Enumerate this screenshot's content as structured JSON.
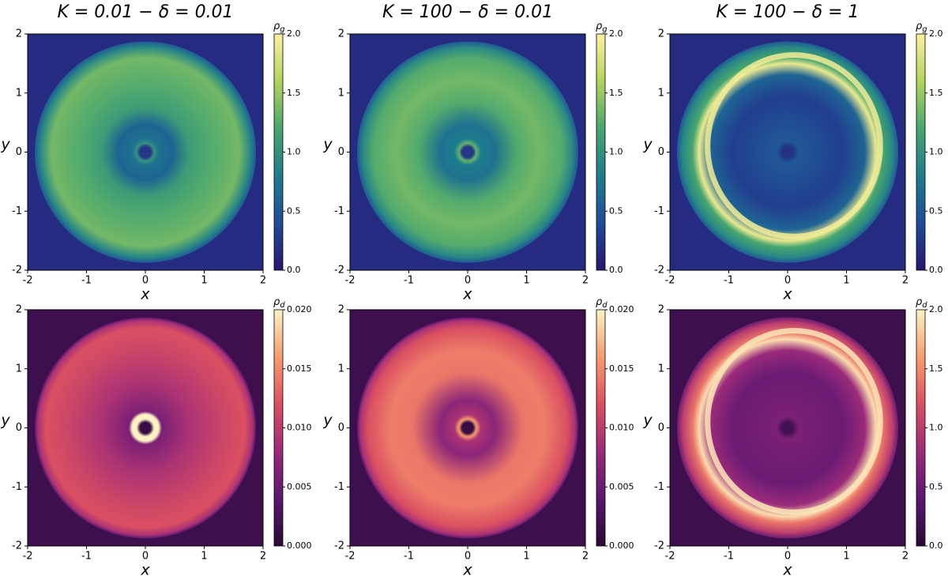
{
  "chart_data": [
    {
      "type": "heatmap",
      "title": "K = 0.01 − δ = 0.01",
      "xlabel": "x",
      "ylabel": "y",
      "xlim": [
        -2,
        2
      ],
      "ylim": [
        -2,
        2
      ],
      "xticks": [
        -2,
        -1,
        0,
        1,
        2
      ],
      "yticks": [
        -2,
        -1,
        0,
        1,
        2
      ],
      "colormap": "viridis",
      "colorbar": {
        "label": {
          "symbol": "ρ",
          "subscript": "g"
        },
        "lim": [
          0,
          2
        ],
        "ticks": [
          {
            "value": 0,
            "label": "0.0"
          },
          {
            "value": 0.5,
            "label": "0.5"
          },
          {
            "value": 1,
            "label": "1.0"
          },
          {
            "value": 1.5,
            "label": "1.5"
          },
          {
            "value": 2,
            "label": "2.0"
          }
        ]
      }
    },
    {
      "type": "heatmap",
      "title": "K = 100 − δ = 0.01",
      "xlabel": "x",
      "ylabel": "y",
      "xlim": [
        -2,
        2
      ],
      "ylim": [
        -2,
        2
      ],
      "xticks": [
        -2,
        -1,
        0,
        1,
        2
      ],
      "yticks": [
        -2,
        -1,
        0,
        1,
        2
      ],
      "colormap": "viridis",
      "colorbar": {
        "label": {
          "symbol": "ρ",
          "subscript": "g"
        },
        "lim": [
          0,
          2
        ],
        "ticks": [
          {
            "value": 0,
            "label": "0.0"
          },
          {
            "value": 0.5,
            "label": "0.5"
          },
          {
            "value": 1,
            "label": "1.0"
          },
          {
            "value": 1.5,
            "label": "1.5"
          },
          {
            "value": 2,
            "label": "2.0"
          }
        ]
      }
    },
    {
      "type": "heatmap",
      "title": "K = 100 − δ = 1",
      "xlabel": "x",
      "ylabel": "y",
      "xlim": [
        -2,
        2
      ],
      "ylim": [
        -2,
        2
      ],
      "xticks": [
        -2,
        -1,
        0,
        1,
        2
      ],
      "yticks": [
        -2,
        -1,
        0,
        1,
        2
      ],
      "colormap": "viridis",
      "colorbar": {
        "label": {
          "symbol": "ρ",
          "subscript": "g"
        },
        "lim": [
          0,
          2
        ],
        "ticks": [
          {
            "value": 0,
            "label": "0.0"
          },
          {
            "value": 0.5,
            "label": "0.5"
          },
          {
            "value": 1,
            "label": "1.0"
          },
          {
            "value": 1.5,
            "label": "1.5"
          },
          {
            "value": 2,
            "label": "2.0"
          }
        ]
      }
    },
    {
      "type": "heatmap",
      "xlabel": "x",
      "ylabel": "y",
      "xlim": [
        -2,
        2
      ],
      "ylim": [
        -2,
        2
      ],
      "xticks": [
        -2,
        -1,
        0,
        1,
        2
      ],
      "yticks": [
        -2,
        -1,
        0,
        1,
        2
      ],
      "colormap": "magma",
      "colorbar": {
        "label": {
          "symbol": "ρ",
          "subscript": "d"
        },
        "lim": [
          0,
          0.02
        ],
        "ticks": [
          {
            "value": 0,
            "label": "0.000"
          },
          {
            "value": 0.005,
            "label": "0.005"
          },
          {
            "value": 0.01,
            "label": "0.010"
          },
          {
            "value": 0.015,
            "label": "0.015"
          },
          {
            "value": 0.02,
            "label": "0.020"
          }
        ]
      }
    },
    {
      "type": "heatmap",
      "xlabel": "x",
      "ylabel": "y",
      "xlim": [
        -2,
        2
      ],
      "ylim": [
        -2,
        2
      ],
      "xticks": [
        -2,
        -1,
        0,
        1,
        2
      ],
      "yticks": [
        -2,
        -1,
        0,
        1,
        2
      ],
      "colormap": "magma",
      "colorbar": {
        "label": {
          "symbol": "ρ",
          "subscript": "d"
        },
        "lim": [
          0,
          0.02
        ],
        "ticks": [
          {
            "value": 0,
            "label": "0.000"
          },
          {
            "value": 0.005,
            "label": "0.005"
          },
          {
            "value": 0.01,
            "label": "0.010"
          },
          {
            "value": 0.015,
            "label": "0.015"
          },
          {
            "value": 0.02,
            "label": "0.020"
          }
        ]
      }
    },
    {
      "type": "heatmap",
      "xlabel": "x",
      "ylabel": "y",
      "xlim": [
        -2,
        2
      ],
      "ylim": [
        -2,
        2
      ],
      "xticks": [
        -2,
        -1,
        0,
        1,
        2
      ],
      "yticks": [
        -2,
        -1,
        0,
        1,
        2
      ],
      "colormap": "magma",
      "colorbar": {
        "label": {
          "symbol": "ρ",
          "subscript": "d"
        },
        "lim": [
          0,
          2
        ],
        "ticks": [
          {
            "value": 0,
            "label": "0.0"
          },
          {
            "value": 0.5,
            "label": "0.5"
          },
          {
            "value": 1,
            "label": "1.0"
          },
          {
            "value": 1.5,
            "label": "1.5"
          },
          {
            "value": 2,
            "label": "2.0"
          }
        ]
      }
    }
  ]
}
